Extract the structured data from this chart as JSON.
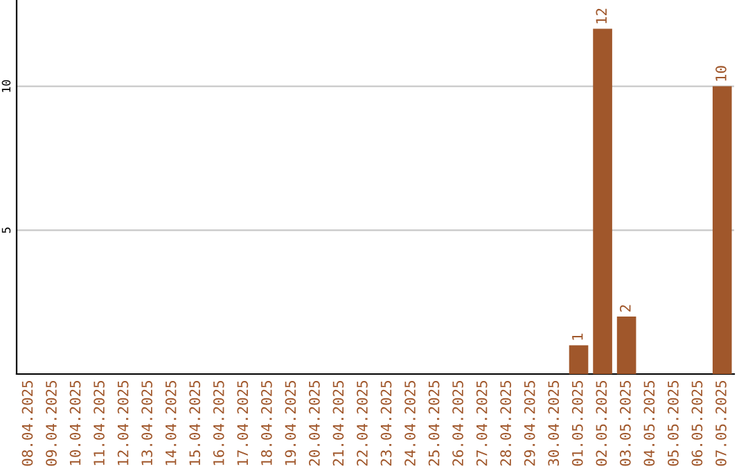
{
  "chart_data": {
    "type": "bar",
    "categories": [
      "08.04.2025",
      "09.04.2025",
      "10.04.2025",
      "11.04.2025",
      "12.04.2025",
      "13.04.2025",
      "14.04.2025",
      "15.04.2025",
      "16.04.2025",
      "17.04.2025",
      "18.04.2025",
      "19.04.2025",
      "20.04.2025",
      "21.04.2025",
      "22.04.2025",
      "23.04.2025",
      "24.04.2025",
      "25.04.2025",
      "26.04.2025",
      "27.04.2025",
      "28.04.2025",
      "29.04.2025",
      "30.04.2025",
      "01.05.2025",
      "02.05.2025",
      "03.05.2025",
      "04.05.2025",
      "05.05.2025",
      "06.05.2025",
      "07.05.2025"
    ],
    "values": [
      0,
      0,
      0,
      0,
      0,
      0,
      0,
      0,
      0,
      0,
      0,
      0,
      0,
      0,
      0,
      0,
      0,
      0,
      0,
      0,
      0,
      0,
      0,
      1,
      12,
      2,
      0,
      0,
      0,
      10
    ],
    "value_labels": [
      null,
      null,
      null,
      null,
      null,
      null,
      null,
      null,
      null,
      null,
      null,
      null,
      null,
      null,
      null,
      null,
      null,
      null,
      null,
      null,
      null,
      null,
      null,
      "1",
      "12",
      "2",
      null,
      null,
      null,
      "10"
    ],
    "color": "#a0572b",
    "ylim": [
      0,
      13
    ],
    "yticks": [
      5,
      10
    ],
    "grid": "y"
  }
}
